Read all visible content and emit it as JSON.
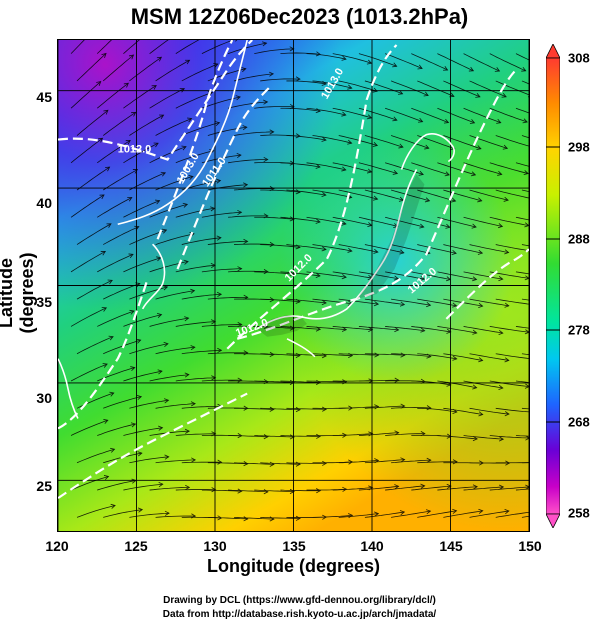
{
  "title": "MSM 12Z06Dec2023 (1013.2hPa)",
  "axes": {
    "xlabel": "Longitude (degrees)",
    "ylabel": "Latitude  (degrees)",
    "xticks": [
      "120",
      "125",
      "130",
      "135",
      "140",
      "145",
      "150"
    ],
    "yticks": [
      "45",
      "40",
      "35",
      "30",
      "25"
    ]
  },
  "colorbar": {
    "ticks": [
      "308",
      "298",
      "288",
      "278",
      "268",
      "258"
    ],
    "colors": [
      "#ff3b30",
      "#ff8c00",
      "#ffd400",
      "#c8f000",
      "#32dc32",
      "#00e5a0",
      "#00c8f0",
      "#1e64ff",
      "#6a00d6",
      "#c800c8",
      "#ff50c8"
    ]
  },
  "contours": [
    "1012.0",
    "1003.0",
    "1011.0",
    "1012.0",
    "1012.0",
    "1013.0",
    "1012.0"
  ],
  "credits": {
    "line1": "Drawing by DCL (https://www.gfd-dennou.org/library/dcl/)",
    "line2": "Data from http://database.rish.kyoto-u.ac.jp/arch/jmadata/"
  },
  "chart_data": {
    "type": "heatmap",
    "title": "MSM 12Z06Dec2023 (1013.2hPa)",
    "xlabel": "Longitude (degrees)",
    "ylabel": "Latitude  (degrees)",
    "xlim": [
      120,
      150
    ],
    "ylim": [
      22.4,
      47.6
    ],
    "colorbar_range": [
      258,
      308
    ],
    "grid": true
  }
}
